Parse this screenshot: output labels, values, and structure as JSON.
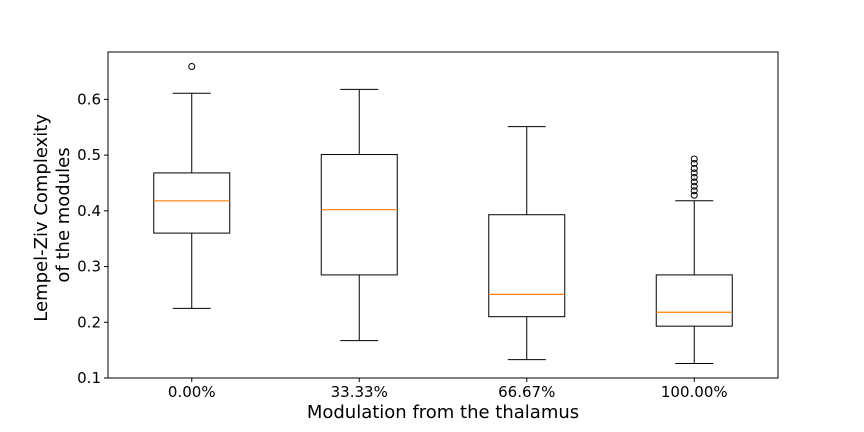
{
  "chart_data": {
    "type": "box",
    "xlabel": "Modulation from the thalamus",
    "ylabel_lines": [
      "Lempel-Ziv Complexity",
      "of the modules"
    ],
    "categories": [
      "0.00%",
      "33.33%",
      "66.67%",
      "100.00%"
    ],
    "ylim": [
      0.1,
      0.685
    ],
    "yticks": [
      0.1,
      0.2,
      0.3,
      0.4,
      0.5,
      0.6
    ],
    "ytick_labels": [
      "0.1",
      "0.2",
      "0.3",
      "0.4",
      "0.5",
      "0.6"
    ],
    "grid": false,
    "boxes": [
      {
        "category": "0.00%",
        "whisker_low": 0.225,
        "q1": 0.36,
        "median": 0.418,
        "q3": 0.468,
        "whisker_high": 0.611,
        "outliers": [
          0.659
        ]
      },
      {
        "category": "33.33%",
        "whisker_low": 0.167,
        "q1": 0.285,
        "median": 0.402,
        "q3": 0.501,
        "whisker_high": 0.618,
        "outliers": []
      },
      {
        "category": "66.67%",
        "whisker_low": 0.133,
        "q1": 0.21,
        "median": 0.25,
        "q3": 0.393,
        "whisker_high": 0.551,
        "outliers": []
      },
      {
        "category": "100.00%",
        "whisker_low": 0.126,
        "q1": 0.193,
        "median": 0.218,
        "q3": 0.285,
        "whisker_high": 0.418,
        "outliers": [
          0.428,
          0.436,
          0.444,
          0.452,
          0.46,
          0.468,
          0.476,
          0.485,
          0.493
        ]
      }
    ],
    "colors": {
      "box": "#000000",
      "median": "#ff7f0e",
      "outlier": "#000000"
    }
  }
}
